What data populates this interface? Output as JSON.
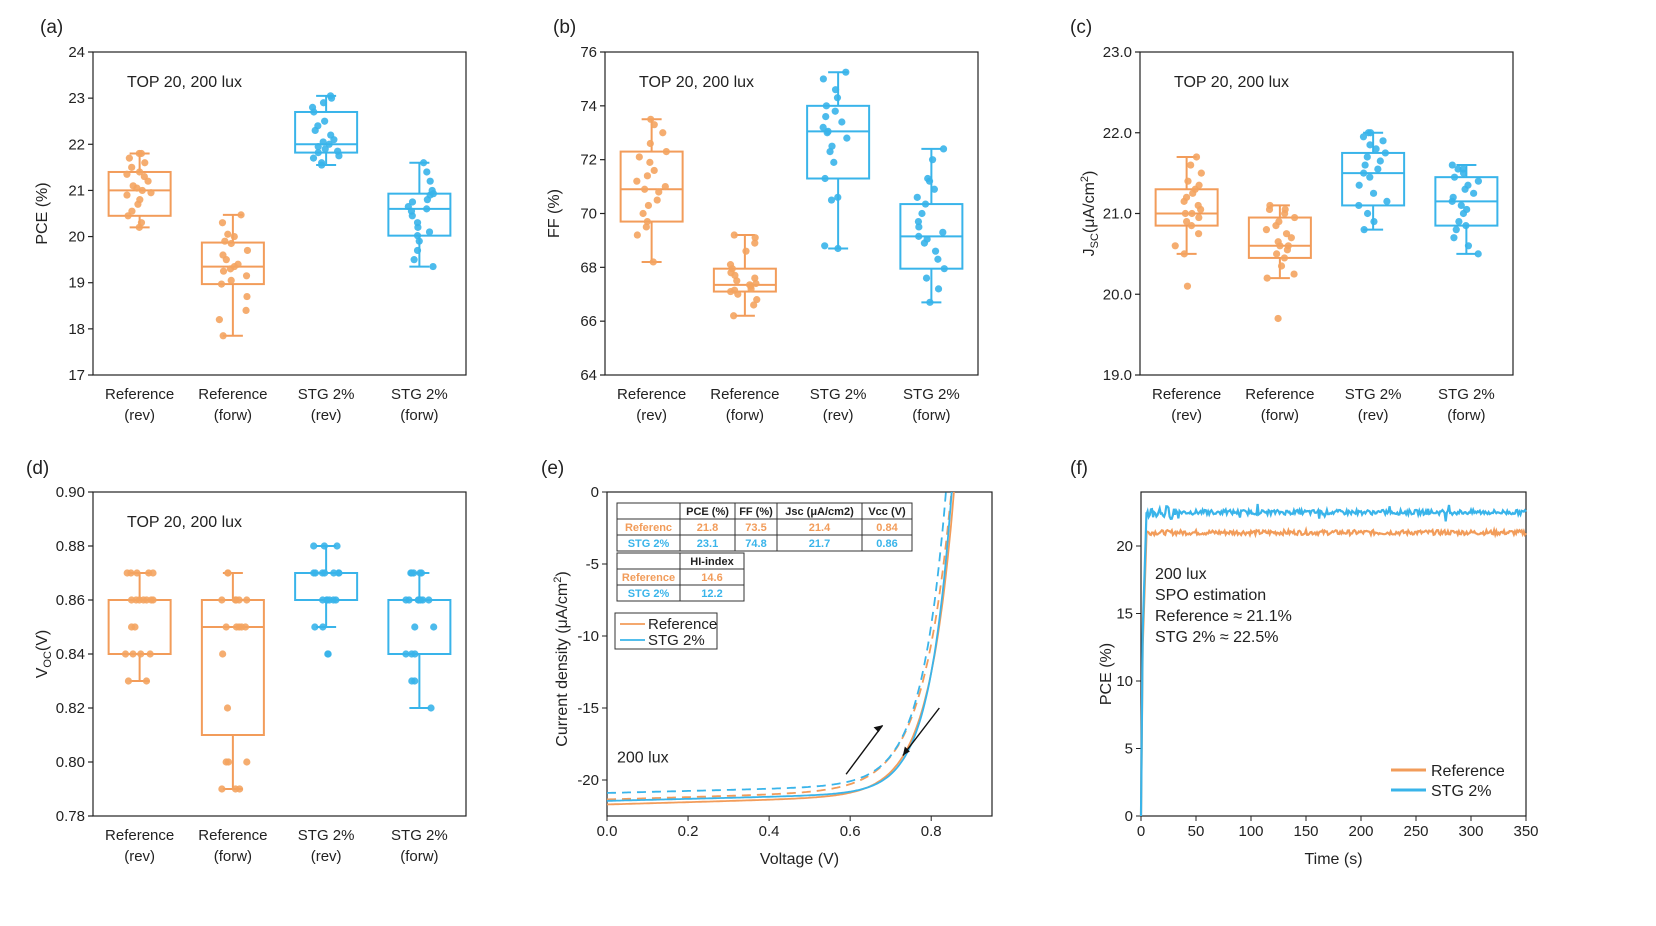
{
  "colors": {
    "reference": "#F4A460",
    "reference_box": "#F29C5A",
    "stg": "#39B4EA",
    "axis": "#222222"
  },
  "chart_data": [
    {
      "id": "a",
      "panel_label": "(a)",
      "type": "box",
      "annotation": "TOP 20, 200 lux",
      "ylabel": "PCE (%)",
      "ylim": [
        17,
        24
      ],
      "yticks": [
        "17",
        "18",
        "19",
        "20",
        "21",
        "22",
        "23",
        "24"
      ],
      "categories": [
        {
          "line1": "Reference",
          "line2": "(rev)",
          "group": "reference",
          "whisker_low": 20.2,
          "q1": 20.45,
          "median": 21.0,
          "q3": 21.4,
          "whisker_high": 21.8,
          "points": [
            20.2,
            20.3,
            20.45,
            20.55,
            20.7,
            20.8,
            20.9,
            20.95,
            21.0,
            21.05,
            21.1,
            21.2,
            21.3,
            21.35,
            21.4,
            21.5,
            21.6,
            21.7,
            21.8,
            21.8
          ]
        },
        {
          "line1": "Reference",
          "line2": "(forw)",
          "group": "reference",
          "whisker_low": 17.85,
          "q1": 18.97,
          "median": 19.35,
          "q3": 19.87,
          "whisker_high": 20.47,
          "points": [
            17.85,
            18.2,
            18.4,
            18.7,
            18.97,
            19.05,
            19.15,
            19.25,
            19.3,
            19.35,
            19.4,
            19.5,
            19.6,
            19.7,
            19.85,
            19.9,
            20.0,
            20.05,
            20.3,
            20.47
          ]
        },
        {
          "line1": "STG 2%",
          "line2": "(rev)",
          "group": "stg",
          "whisker_low": 21.55,
          "q1": 21.82,
          "median": 22.0,
          "q3": 22.7,
          "whisker_high": 23.05,
          "points": [
            21.55,
            21.6,
            21.7,
            21.75,
            21.82,
            21.85,
            21.9,
            21.95,
            22.0,
            22.05,
            22.1,
            22.2,
            22.3,
            22.4,
            22.5,
            22.7,
            22.8,
            22.9,
            23.0,
            23.05
          ]
        },
        {
          "line1": "STG 2%",
          "line2": "(forw)",
          "group": "stg",
          "whisker_low": 19.35,
          "q1": 20.02,
          "median": 20.6,
          "q3": 20.93,
          "whisker_high": 21.6,
          "points": [
            19.35,
            19.5,
            19.7,
            19.9,
            20.02,
            20.1,
            20.2,
            20.3,
            20.45,
            20.55,
            20.6,
            20.65,
            20.75,
            20.8,
            20.9,
            20.93,
            21.0,
            21.2,
            21.4,
            21.6
          ]
        }
      ]
    },
    {
      "id": "b",
      "panel_label": "(b)",
      "type": "box",
      "annotation": "TOP 20, 200 lux",
      "ylabel": "FF (%)",
      "ylim": [
        64,
        76
      ],
      "yticks": [
        "64",
        "66",
        "68",
        "70",
        "72",
        "74",
        "76"
      ],
      "categories": [
        {
          "line1": "Reference",
          "line2": "(rev)",
          "group": "reference",
          "whisker_low": 68.2,
          "q1": 69.7,
          "median": 70.9,
          "q3": 72.3,
          "whisker_high": 73.5,
          "points": [
            68.2,
            69.2,
            69.5,
            69.7,
            70.0,
            70.3,
            70.5,
            70.8,
            70.9,
            71.0,
            71.2,
            71.4,
            71.6,
            71.9,
            72.1,
            72.3,
            72.6,
            73.0,
            73.3,
            73.5
          ]
        },
        {
          "line1": "Reference",
          "line2": "(forw)",
          "group": "reference",
          "whisker_low": 66.2,
          "q1": 67.1,
          "median": 67.35,
          "q3": 67.95,
          "whisker_high": 69.2,
          "points": [
            66.2,
            66.6,
            66.8,
            67.0,
            67.1,
            67.15,
            67.2,
            67.3,
            67.35,
            67.4,
            67.5,
            67.6,
            67.7,
            67.8,
            67.95,
            68.1,
            68.6,
            68.9,
            69.1,
            69.2
          ]
        },
        {
          "line1": "STG 2%",
          "line2": "(rev)",
          "group": "stg",
          "whisker_low": 68.7,
          "q1": 71.3,
          "median": 73.05,
          "q3": 74.0,
          "whisker_high": 75.25,
          "points": [
            68.7,
            68.8,
            70.5,
            70.6,
            71.3,
            71.9,
            72.3,
            72.5,
            72.8,
            73.0,
            73.05,
            73.2,
            73.4,
            73.6,
            73.8,
            74.0,
            74.3,
            74.6,
            75.0,
            75.25
          ]
        },
        {
          "line1": "STG 2%",
          "line2": "(forw)",
          "group": "stg",
          "whisker_low": 66.7,
          "q1": 67.95,
          "median": 69.15,
          "q3": 70.35,
          "whisker_high": 72.4,
          "points": [
            66.7,
            67.2,
            67.6,
            67.95,
            68.3,
            68.6,
            68.9,
            69.05,
            69.15,
            69.3,
            69.5,
            69.7,
            70.0,
            70.35,
            70.6,
            70.9,
            71.2,
            71.3,
            72.0,
            72.4
          ]
        }
      ]
    },
    {
      "id": "c",
      "panel_label": "(c)",
      "type": "box",
      "annotation": "TOP 20, 200 lux",
      "ylabel_main": "J",
      "ylabel_sub": "SC",
      "ylabel_rest": "(μA/cm",
      "ylabel_sup": "2",
      "ylabel_end": ")",
      "ylim": [
        19.0,
        23.0
      ],
      "yticks": [
        "19.0",
        "20.0",
        "21.0",
        "22.0",
        "23.0"
      ],
      "categories": [
        {
          "line1": "Reference",
          "line2": "(rev)",
          "group": "reference",
          "whisker_low": 20.5,
          "q1": 20.85,
          "median": 21.0,
          "q3": 21.3,
          "whisker_high": 21.7,
          "points": [
            20.1,
            20.5,
            20.6,
            20.75,
            20.85,
            20.9,
            20.95,
            21.0,
            21.0,
            21.05,
            21.1,
            21.15,
            21.2,
            21.25,
            21.3,
            21.35,
            21.4,
            21.5,
            21.6,
            21.7
          ]
        },
        {
          "line1": "Reference",
          "line2": "(forw)",
          "group": "reference",
          "whisker_low": 20.2,
          "q1": 20.45,
          "median": 20.6,
          "q3": 20.95,
          "whisker_high": 21.1,
          "points": [
            19.7,
            20.2,
            20.25,
            20.35,
            20.45,
            20.5,
            20.55,
            20.6,
            20.6,
            20.65,
            20.7,
            20.75,
            20.8,
            20.85,
            20.9,
            20.95,
            21.0,
            21.05,
            21.05,
            21.1
          ]
        },
        {
          "line1": "STG 2%",
          "line2": "(rev)",
          "group": "stg",
          "whisker_low": 20.8,
          "q1": 21.1,
          "median": 21.5,
          "q3": 21.75,
          "whisker_high": 22.0,
          "points": [
            20.8,
            20.9,
            21.0,
            21.1,
            21.15,
            21.25,
            21.35,
            21.45,
            21.5,
            21.55,
            21.6,
            21.65,
            21.7,
            21.75,
            21.8,
            21.85,
            21.9,
            21.95,
            22.0,
            22.0
          ]
        },
        {
          "line1": "STG 2%",
          "line2": "(forw)",
          "group": "stg",
          "whisker_low": 20.5,
          "q1": 20.85,
          "median": 21.15,
          "q3": 21.45,
          "whisker_high": 21.6,
          "points": [
            20.5,
            20.6,
            20.7,
            20.8,
            20.85,
            20.9,
            21.0,
            21.05,
            21.1,
            21.15,
            21.2,
            21.25,
            21.3,
            21.35,
            21.4,
            21.45,
            21.5,
            21.55,
            21.55,
            21.6
          ]
        }
      ]
    },
    {
      "id": "d",
      "panel_label": "(d)",
      "type": "box",
      "annotation": "TOP 20, 200 lux",
      "ylabel_main": "V",
      "ylabel_sub": "OC",
      "ylabel_end": "(V)",
      "ylim": [
        0.78,
        0.9
      ],
      "yticks": [
        "0.78",
        "0.80",
        "0.82",
        "0.84",
        "0.86",
        "0.88",
        "0.90"
      ],
      "categories": [
        {
          "line1": "Reference",
          "line2": "(rev)",
          "group": "reference",
          "whisker_low": 0.83,
          "q1": 0.84,
          "median": 0.86,
          "q3": 0.86,
          "whisker_high": 0.87,
          "points": [
            0.83,
            0.83,
            0.84,
            0.84,
            0.84,
            0.84,
            0.85,
            0.85,
            0.86,
            0.86,
            0.86,
            0.86,
            0.86,
            0.86,
            0.86,
            0.87,
            0.87,
            0.87,
            0.87,
            0.87
          ]
        },
        {
          "line1": "Reference",
          "line2": "(forw)",
          "group": "reference",
          "whisker_low": 0.79,
          "q1": 0.81,
          "median": 0.85,
          "q3": 0.86,
          "whisker_high": 0.87,
          "points": [
            0.79,
            0.79,
            0.79,
            0.8,
            0.8,
            0.8,
            0.82,
            0.84,
            0.85,
            0.85,
            0.85,
            0.85,
            0.85,
            0.86,
            0.86,
            0.86,
            0.86,
            0.86,
            0.87,
            0.87
          ]
        },
        {
          "line1": "STG 2%",
          "line2": "(rev)",
          "group": "stg",
          "whisker_low": 0.85,
          "q1": 0.86,
          "median": 0.87,
          "q3": 0.87,
          "whisker_high": 0.88,
          "points": [
            0.84,
            0.84,
            0.85,
            0.85,
            0.86,
            0.86,
            0.86,
            0.86,
            0.86,
            0.86,
            0.87,
            0.87,
            0.87,
            0.87,
            0.87,
            0.87,
            0.87,
            0.88,
            0.88,
            0.88
          ]
        },
        {
          "line1": "STG 2%",
          "line2": "(forw)",
          "group": "stg",
          "whisker_low": 0.82,
          "q1": 0.84,
          "median": 0.86,
          "q3": 0.86,
          "whisker_high": 0.87,
          "points": [
            0.82,
            0.83,
            0.83,
            0.84,
            0.84,
            0.84,
            0.85,
            0.85,
            0.86,
            0.86,
            0.86,
            0.86,
            0.86,
            0.86,
            0.86,
            0.87,
            0.87,
            0.87,
            0.87,
            0.87
          ]
        }
      ]
    },
    {
      "id": "e",
      "panel_label": "(e)",
      "type": "line",
      "xlabel": "Voltage (V)",
      "ylabel_main": "Current density (μA/cm",
      "ylabel_sup": "2",
      "ylabel_end": ")",
      "xlim": [
        0,
        0.95
      ],
      "ylim": [
        -22.5,
        0
      ],
      "xticks": [
        "0.0",
        "0.2",
        "0.4",
        "0.6",
        "0.8"
      ],
      "xtick_values": [
        0,
        0.2,
        0.4,
        0.6,
        0.8
      ],
      "yticks": [
        "-20",
        "-15",
        "-10",
        "-5",
        "0"
      ],
      "ytick_values": [
        -20,
        -15,
        -10,
        -5,
        0
      ],
      "annotation": "200 lux",
      "legend": [
        "Reference",
        "STG 2%"
      ],
      "series": [
        {
          "name": "Reference",
          "sweep": "rev",
          "style": "solid",
          "group": "reference",
          "jsc": 21.7,
          "voc": 0.858,
          "shunt_slope": 0.8,
          "knee": 0.062
        },
        {
          "name": "Reference",
          "sweep": "forw",
          "style": "dashed",
          "group": "reference",
          "jsc": 21.35,
          "voc": 0.852,
          "shunt_slope": 0.8,
          "knee": 0.07
        },
        {
          "name": "STG 2%",
          "sweep": "rev",
          "style": "solid",
          "group": "stg",
          "jsc": 21.45,
          "voc": 0.852,
          "shunt_slope": 0.7,
          "knee": 0.055
        },
        {
          "name": "STG 2%",
          "sweep": "forw",
          "style": "dashed",
          "group": "stg",
          "jsc": 20.9,
          "voc": 0.838,
          "shunt_slope": 0.7,
          "knee": 0.06
        }
      ],
      "table1": {
        "headers": [
          "",
          "PCE (%)",
          "FF (%)",
          "Jsc (μA/cm2)",
          "Vcc (V)"
        ],
        "rows": [
          {
            "group": "reference",
            "cells": [
              "Referenc",
              "21.8",
              "73.5",
              "21.4",
              "0.84"
            ]
          },
          {
            "group": "stg",
            "cells": [
              "STG 2%",
              "23.1",
              "74.8",
              "21.7",
              "0.86"
            ]
          }
        ]
      },
      "table2": {
        "headers": [
          "",
          "HI-index"
        ],
        "rows": [
          {
            "group": "reference",
            "cells": [
              "Reference",
              "14.6"
            ]
          },
          {
            "group": "stg",
            "cells": [
              "STG 2%",
              "12.2"
            ]
          }
        ]
      }
    },
    {
      "id": "f",
      "panel_label": "(f)",
      "type": "line",
      "xlabel": "Time (s)",
      "ylabel": "PCE (%)",
      "xlim": [
        0,
        350
      ],
      "ylim": [
        0,
        24
      ],
      "xticks": [
        "0",
        "50",
        "100",
        "150",
        "200",
        "250",
        "300",
        "350"
      ],
      "xtick_values": [
        0,
        50,
        100,
        150,
        200,
        250,
        300,
        350
      ],
      "yticks": [
        "0",
        "5",
        "10",
        "15",
        "20"
      ],
      "ytick_values": [
        0,
        5,
        10,
        15,
        20
      ],
      "annotations": [
        "200 lux",
        "SPO estimation",
        "Reference ≈ 21.1%",
        "STG 2% ≈ 22.5%"
      ],
      "legend": [
        "Reference",
        "STG 2%"
      ],
      "series": [
        {
          "name": "Reference",
          "group": "reference",
          "steady": 21.0,
          "rise_end": 5
        },
        {
          "name": "STG 2%",
          "group": "stg",
          "steady": 22.5,
          "rise_end": 5
        }
      ]
    }
  ]
}
